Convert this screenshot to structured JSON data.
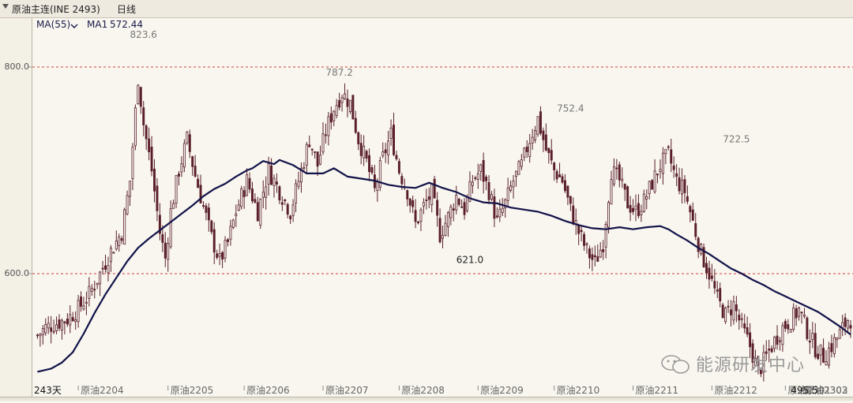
{
  "header": {
    "instrument": "原油主连(INE 2493)",
    "period": "日线"
  },
  "indicator": {
    "name": "MA(55)",
    "dropdown_icon": "chevron-down-icon",
    "ma1_label": "MA1",
    "ma1_value": "572.44"
  },
  "watermark": {
    "icon": "wechat-icon",
    "text": "能源研发中心"
  },
  "colors": {
    "up_candle": "#ffffff",
    "down_candle": "#5a1f2a",
    "ma_line": "#12124a",
    "grid_line": "#d24040",
    "background": "#f8f6ee"
  },
  "chart_data": {
    "type": "candlestick",
    "title": "原油主连(INE 2493) 日线",
    "ylim": [
      507,
      846
    ],
    "y_ticks": [
      600.0,
      800.0
    ],
    "y_tick_labels": [
      "600.0",
      "800.0"
    ],
    "x_labels": [
      "243天",
      "原油2204",
      "原油2205",
      "原油2206",
      "原油2207",
      "原油2208",
      "原油2209",
      "原油2210",
      "原油2211",
      "原油2212",
      "原油2301",
      "原油2302",
      "原油2303"
    ],
    "grid": "horizontal-dashed-at-ticks",
    "legend": "top-left",
    "annotations": [
      {
        "label": "823.6",
        "month": "原油2204",
        "value": 823.6,
        "kind": "high"
      },
      {
        "label": "787.2",
        "month": "原油2207",
        "value": 787.2,
        "kind": "high"
      },
      {
        "label": "621.0",
        "month": "原油2208",
        "value": 621.0,
        "kind": "low"
      },
      {
        "label": "752.4",
        "month": "原油2210",
        "value": 752.4,
        "kind": "high"
      },
      {
        "label": "722.5",
        "month": "原油2212",
        "value": 722.5,
        "kind": "high"
      },
      {
        "label": "495.5",
        "month": "原油2302",
        "value": 495.5,
        "kind": "low"
      }
    ],
    "close_trend": [
      [
        1,
        540
      ],
      [
        4,
        548
      ],
      [
        8,
        552
      ],
      [
        12,
        556
      ],
      [
        16,
        566
      ],
      [
        20,
        580
      ],
      [
        24,
        600
      ],
      [
        28,
        622
      ],
      [
        32,
        640
      ],
      [
        35,
        690
      ],
      [
        38,
        790
      ],
      [
        40,
        745
      ],
      [
        43,
        700
      ],
      [
        46,
        640
      ],
      [
        48,
        615
      ],
      [
        50,
        660
      ],
      [
        53,
        700
      ],
      [
        56,
        730
      ],
      [
        59,
        695
      ],
      [
        62,
        665
      ],
      [
        65,
        635
      ],
      [
        68,
        612
      ],
      [
        71,
        630
      ],
      [
        74,
        660
      ],
      [
        78,
        690
      ],
      [
        82,
        660
      ],
      [
        86,
        700
      ],
      [
        90,
        680
      ],
      [
        94,
        660
      ],
      [
        98,
        700
      ],
      [
        101,
        730
      ],
      [
        104,
        705
      ],
      [
        107,
        738
      ],
      [
        110,
        760
      ],
      [
        113,
        775
      ],
      [
        116,
        765
      ],
      [
        119,
        730
      ],
      [
        122,
        708
      ],
      [
        125,
        680
      ],
      [
        128,
        712
      ],
      [
        131,
        735
      ],
      [
        134,
        700
      ],
      [
        137,
        680
      ],
      [
        140,
        648
      ],
      [
        143,
        665
      ],
      [
        146,
        678
      ],
      [
        149,
        638
      ],
      [
        152,
        655
      ],
      [
        155,
        675
      ],
      [
        158,
        662
      ],
      [
        161,
        690
      ],
      [
        164,
        700
      ],
      [
        167,
        680
      ],
      [
        170,
        650
      ],
      [
        173,
        668
      ],
      [
        176,
        690
      ],
      [
        179,
        705
      ],
      [
        182,
        730
      ],
      [
        185,
        750
      ],
      [
        188,
        720
      ],
      [
        191,
        700
      ],
      [
        194,
        690
      ],
      [
        197,
        662
      ],
      [
        200,
        640
      ],
      [
        203,
        622
      ],
      [
        206,
        610
      ],
      [
        209,
        630
      ],
      [
        212,
        700
      ],
      [
        215,
        690
      ],
      [
        218,
        668
      ],
      [
        221,
        660
      ],
      [
        224,
        670
      ],
      [
        227,
        688
      ],
      [
        230,
        705
      ],
      [
        233,
        715
      ],
      [
        236,
        690
      ],
      [
        239,
        680
      ],
      [
        242,
        650
      ],
      [
        245,
        620
      ],
      [
        248,
        600
      ],
      [
        251,
        575
      ],
      [
        254,
        560
      ],
      [
        257,
        570
      ],
      [
        260,
        548
      ],
      [
        263,
        530
      ],
      [
        266,
        505
      ],
      [
        269,
        520
      ],
      [
        272,
        535
      ],
      [
        275,
        548
      ],
      [
        278,
        555
      ],
      [
        281,
        565
      ],
      [
        284,
        545
      ],
      [
        287,
        528
      ],
      [
        290,
        520
      ],
      [
        293,
        530
      ],
      [
        296,
        542
      ],
      [
        299,
        556
      ]
    ],
    "ma55_trend": [
      [
        1,
        505
      ],
      [
        6,
        508
      ],
      [
        10,
        514
      ],
      [
        14,
        524
      ],
      [
        18,
        542
      ],
      [
        22,
        562
      ],
      [
        26,
        580
      ],
      [
        30,
        596
      ],
      [
        34,
        612
      ],
      [
        38,
        625
      ],
      [
        42,
        634
      ],
      [
        46,
        642
      ],
      [
        50,
        650
      ],
      [
        54,
        658
      ],
      [
        58,
        666
      ],
      [
        62,
        675
      ],
      [
        66,
        682
      ],
      [
        70,
        687
      ],
      [
        74,
        694
      ],
      [
        78,
        700
      ],
      [
        80,
        702
      ],
      [
        84,
        709
      ],
      [
        88,
        706
      ],
      [
        90,
        710
      ],
      [
        95,
        705
      ],
      [
        100,
        697
      ],
      [
        106,
        697
      ],
      [
        110,
        702
      ],
      [
        115,
        694
      ],
      [
        120,
        692
      ],
      [
        125,
        690
      ],
      [
        130,
        686
      ],
      [
        135,
        684
      ],
      [
        140,
        683
      ],
      [
        145,
        688
      ],
      [
        150,
        683
      ],
      [
        155,
        679
      ],
      [
        160,
        673
      ],
      [
        165,
        669
      ],
      [
        170,
        668
      ],
      [
        175,
        664
      ],
      [
        180,
        662
      ],
      [
        185,
        660
      ],
      [
        190,
        656
      ],
      [
        195,
        651
      ],
      [
        200,
        647
      ],
      [
        205,
        644
      ],
      [
        210,
        643
      ],
      [
        215,
        645
      ],
      [
        220,
        643
      ],
      [
        225,
        645
      ],
      [
        230,
        646
      ],
      [
        233,
        643
      ],
      [
        236,
        638
      ],
      [
        240,
        632
      ],
      [
        244,
        625
      ],
      [
        248,
        619
      ],
      [
        252,
        612
      ],
      [
        256,
        605
      ],
      [
        260,
        600
      ],
      [
        264,
        594
      ],
      [
        268,
        589
      ],
      [
        272,
        583
      ],
      [
        276,
        578
      ],
      [
        280,
        573
      ],
      [
        284,
        568
      ],
      [
        288,
        563
      ],
      [
        292,
        556
      ],
      [
        296,
        549
      ],
      [
        300,
        541
      ]
    ]
  }
}
